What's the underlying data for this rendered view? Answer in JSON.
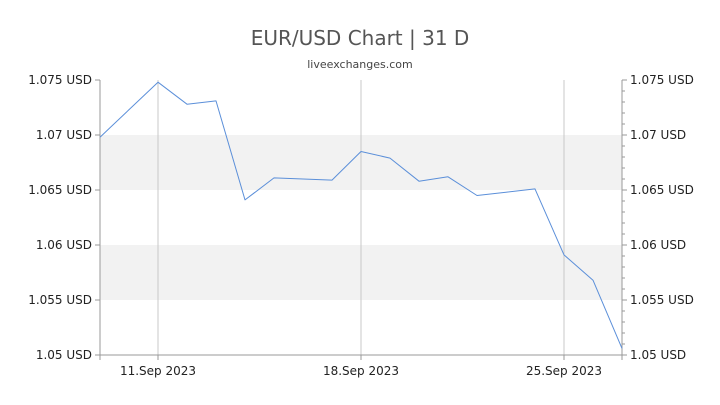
{
  "chart_data": {
    "type": "line",
    "title": "EUR/USD Chart | 31 D",
    "subtitle": "liveexchanges.com",
    "xlabel": "",
    "ylabel": "",
    "ylim": [
      1.05,
      1.075
    ],
    "y_ticks": [
      {
        "value": 1.075,
        "label": "1.075 USD"
      },
      {
        "value": 1.07,
        "label": "1.07 USD"
      },
      {
        "value": 1.065,
        "label": "1.065 USD"
      },
      {
        "value": 1.06,
        "label": "1.06 USD"
      },
      {
        "value": 1.055,
        "label": "1.055 USD"
      },
      {
        "value": 1.05,
        "label": "1.05 USD"
      }
    ],
    "x_ticks": [
      {
        "date": "2023-09-11",
        "label": "11.Sep 2023"
      },
      {
        "date": "2023-09-18",
        "label": "18.Sep 2023"
      },
      {
        "date": "2023-09-25",
        "label": "25.Sep 2023"
      }
    ],
    "xlim": [
      "2023-09-09",
      "2023-09-27"
    ],
    "grid": "horizontal bands and vertical lines at x ticks",
    "series": [
      {
        "color": "#5b8fd9",
        "points": [
          {
            "x": "2023-09-09",
            "y": 1.0698
          },
          {
            "x": "2023-09-11",
            "y": 1.0748
          },
          {
            "x": "2023-09-12",
            "y": 1.0728
          },
          {
            "x": "2023-09-13",
            "y": 1.0731
          },
          {
            "x": "2023-09-14",
            "y": 1.0641
          },
          {
            "x": "2023-09-15",
            "y": 1.0661
          },
          {
            "x": "2023-09-16",
            "y": 1.066
          },
          {
            "x": "2023-09-17",
            "y": 1.0659
          },
          {
            "x": "2023-09-18",
            "y": 1.0685
          },
          {
            "x": "2023-09-19",
            "y": 1.0679
          },
          {
            "x": "2023-09-20",
            "y": 1.0658
          },
          {
            "x": "2023-09-21",
            "y": 1.0662
          },
          {
            "x": "2023-09-22",
            "y": 1.0645
          },
          {
            "x": "2023-09-23",
            "y": 1.0648
          },
          {
            "x": "2023-09-24",
            "y": 1.0651
          },
          {
            "x": "2023-09-25",
            "y": 1.0591
          },
          {
            "x": "2023-09-26",
            "y": 1.0568
          },
          {
            "x": "2023-09-27",
            "y": 1.0506
          }
        ]
      }
    ],
    "colors": {
      "line": "#5b8fd9",
      "band": "#f2f2f2",
      "grid": "#c8c8c8",
      "axis": "#999999",
      "text": "#222222"
    }
  }
}
